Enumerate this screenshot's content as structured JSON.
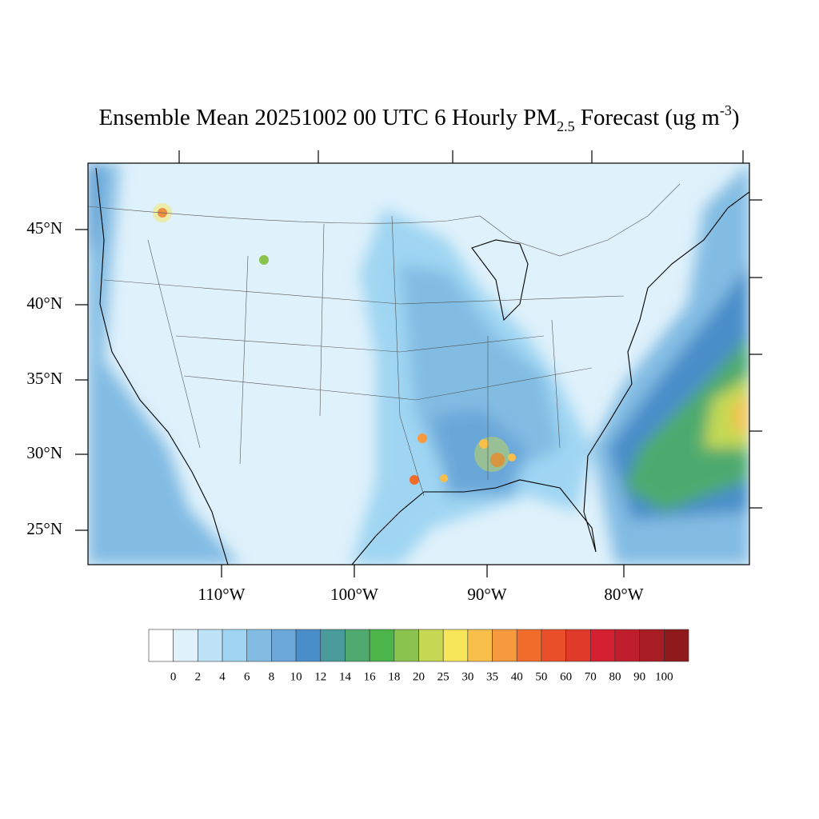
{
  "title": {
    "main": "Ensemble Mean 20251002 00 UTC 6 Hourly PM",
    "subscript": "2.5",
    "after": " Forecast (ug m",
    "superscript": "-3",
    "end": ")"
  },
  "lat_labels": [
    "45°N",
    "40°N",
    "35°N",
    "30°N",
    "25°N"
  ],
  "lon_labels": [
    "110°W",
    "100°W",
    "90°W",
    "80°W"
  ],
  "colorbar": {
    "labels": [
      0,
      2,
      4,
      6,
      8,
      10,
      12,
      14,
      16,
      18,
      20,
      25,
      30,
      35,
      40,
      50,
      60,
      70,
      80,
      90,
      100
    ],
    "colors": [
      "#ffffff",
      "#dff1fb",
      "#bfe3f6",
      "#9fd5f2",
      "#82bce3",
      "#6ba7d9",
      "#4a8ec9",
      "#4a9b9b",
      "#4eaa6e",
      "#4cb54a",
      "#8bc34f",
      "#c5d955",
      "#f7e65a",
      "#f8c04a",
      "#f79a3e",
      "#f26d2b",
      "#e9502a",
      "#e03a2a",
      "#d42030",
      "#bf1f2c",
      "#a81c24",
      "#8e1a1c"
    ]
  }
}
